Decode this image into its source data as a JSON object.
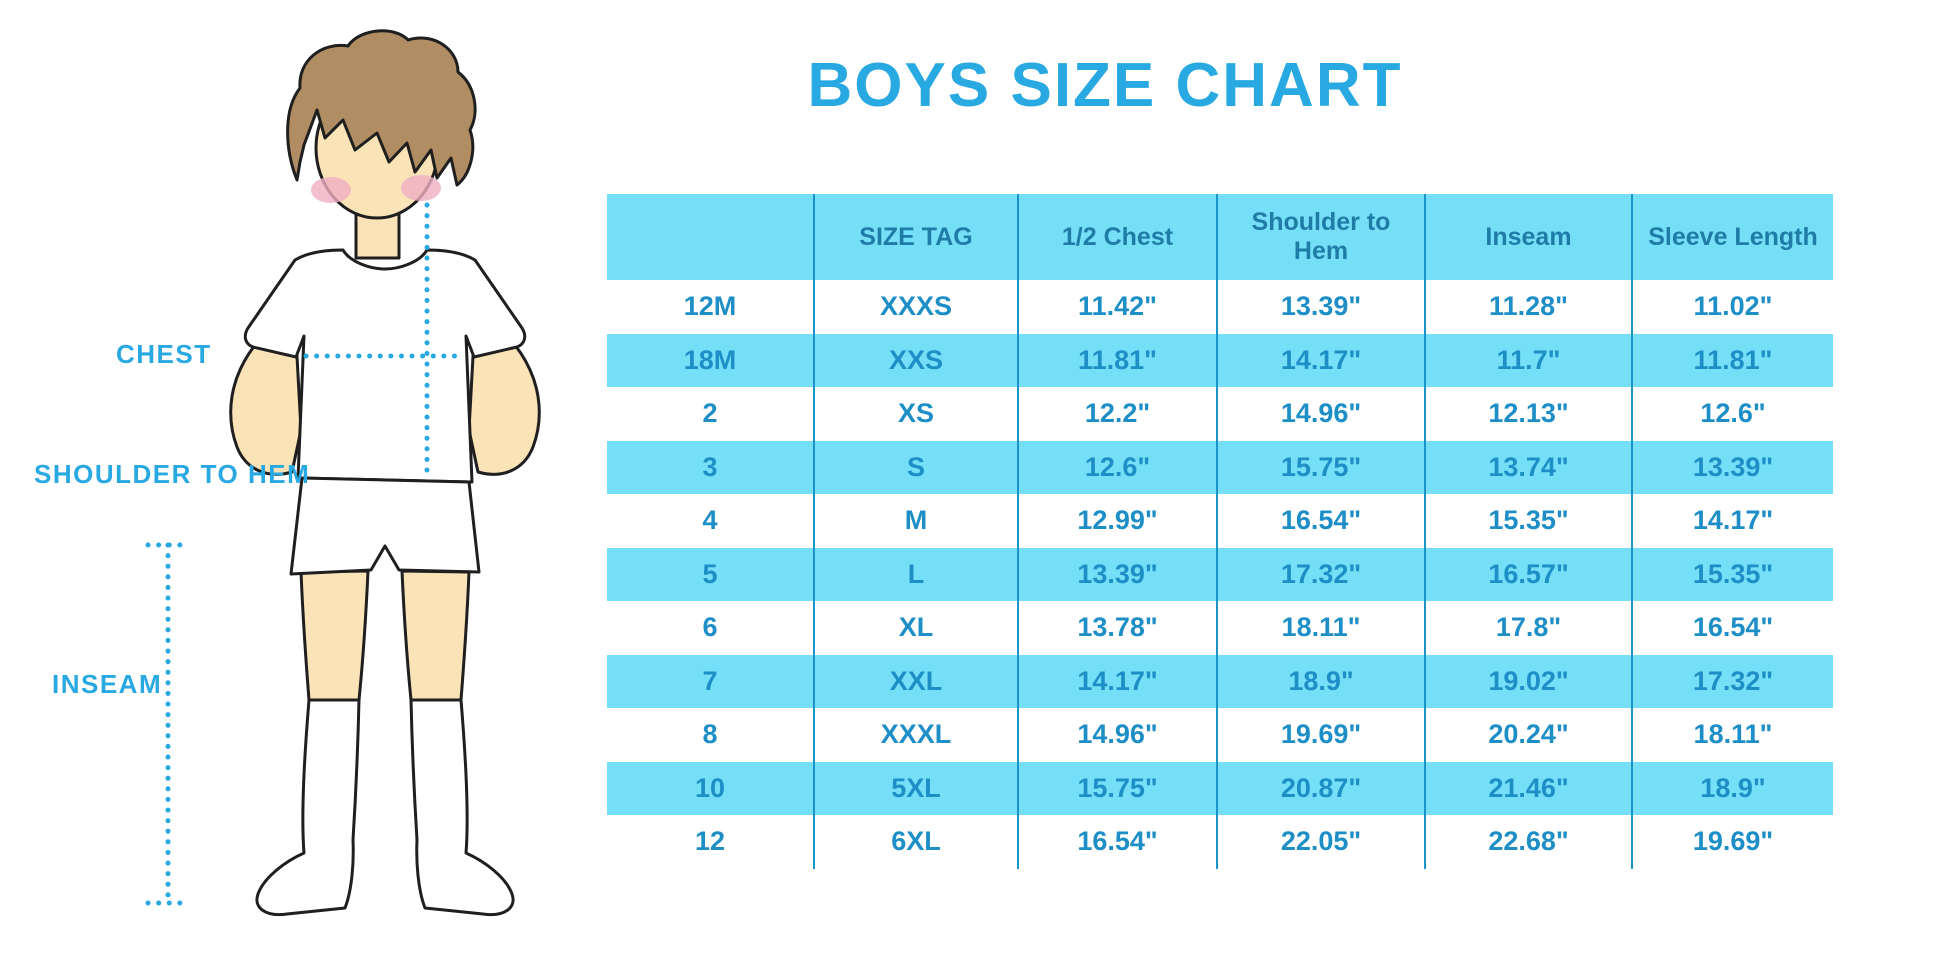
{
  "title": "BOYS SIZE CHART",
  "colors": {
    "accent_blue": "#29a9e1",
    "row_band_cyan": "#75dff7",
    "divider_blue": "#1a95ca",
    "header_text_blue": "#1e7ca7",
    "cell_text_blue": "#1e8ec7",
    "skin_tone": "#fbe3b8",
    "hair_brown": "#b18d63",
    "blush_pink": "#f0aec2",
    "figure_outline": "#1f1f1f"
  },
  "figure": {
    "description": "boy-in-tshirt-shorts-and-socks-measurement-illustration",
    "measure_labels": {
      "chest": "CHEST",
      "shoulder_to_hem": "SHOULDER TO HEM",
      "inseam": "INSEAM"
    }
  },
  "chart_data": {
    "type": "table",
    "title": "BOYS SIZE CHART",
    "units": "inches",
    "layout": {
      "striped": true,
      "header_background": "#75dff7",
      "stripe_background": "#75dff7",
      "grid": "vertical-dividers-only"
    },
    "columns": [
      "",
      "SIZE TAG",
      "1/2 Chest",
      "Shoulder to Hem",
      "Inseam",
      "Sleeve Length"
    ],
    "rows": [
      [
        "12M",
        "XXXS",
        "11.42\"",
        "13.39\"",
        "11.28\"",
        "11.02\""
      ],
      [
        "18M",
        "XXS",
        "11.81\"",
        "14.17\"",
        "11.7\"",
        "11.81\""
      ],
      [
        "2",
        "XS",
        "12.2\"",
        "14.96\"",
        "12.13\"",
        "12.6\""
      ],
      [
        "3",
        "S",
        "12.6\"",
        "15.75\"",
        "13.74\"",
        "13.39\""
      ],
      [
        "4",
        "M",
        "12.99\"",
        "16.54\"",
        "15.35\"",
        "14.17\""
      ],
      [
        "5",
        "L",
        "13.39\"",
        "17.32\"",
        "16.57\"",
        "15.35\""
      ],
      [
        "6",
        "XL",
        "13.78\"",
        "18.11\"",
        "17.8\"",
        "16.54\""
      ],
      [
        "7",
        "XXL",
        "14.17\"",
        "18.9\"",
        "19.02\"",
        "17.32\""
      ],
      [
        "8",
        "XXXL",
        "14.96\"",
        "19.69\"",
        "20.24\"",
        "18.11\""
      ],
      [
        "10",
        "5XL",
        "15.75\"",
        "20.87\"",
        "21.46\"",
        "18.9\""
      ],
      [
        "12",
        "6XL",
        "16.54\"",
        "22.05\"",
        "22.68\"",
        "19.69\""
      ]
    ]
  }
}
